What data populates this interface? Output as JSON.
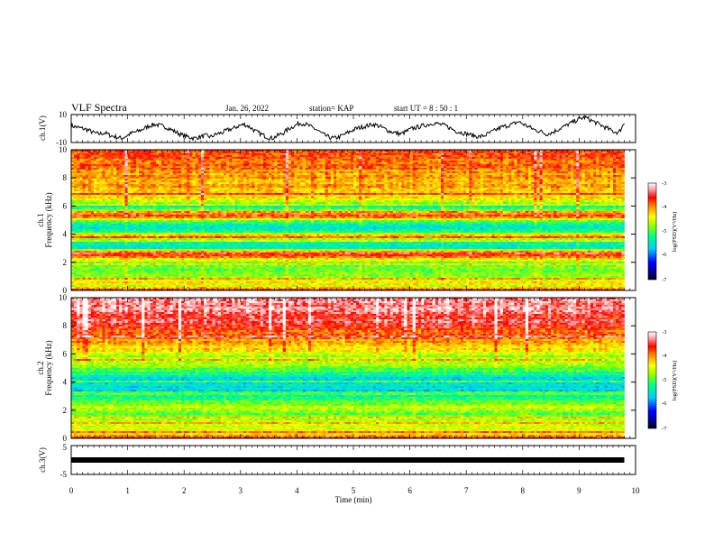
{
  "header": {
    "title": "VLF Spectra",
    "date": "Jan. 26, 2022",
    "station": "station= KAP",
    "start": "start  UT  =   8  : 50 : 1"
  },
  "chart_data": [
    {
      "type": "line",
      "panel": "ch1-waveform",
      "ylabel": "ch.1(V)",
      "yticks": [
        "10",
        "-10"
      ],
      "ylim": [
        -10,
        10
      ],
      "xlim": [
        0,
        10
      ],
      "x_end": 9.8,
      "description_values": [
        2,
        1,
        0,
        -1,
        -3,
        -4,
        -3,
        -5,
        -6,
        -7,
        -5,
        -3,
        -2,
        0,
        2,
        3,
        2,
        1,
        -1,
        -3,
        -5,
        -6,
        -7,
        -6,
        -5,
        -6,
        -4,
        -3,
        -1,
        0,
        2,
        3,
        1,
        -2,
        -4,
        -6,
        -7,
        -5,
        -3,
        0,
        2,
        4,
        3,
        1,
        -1,
        -4,
        -6,
        -7,
        -6,
        -4,
        -2,
        0,
        1,
        2,
        3,
        2,
        0,
        -2,
        -3,
        -4,
        -2,
        0,
        1,
        2,
        3,
        4,
        3,
        2,
        0,
        -2,
        -3,
        -4,
        -5,
        -6,
        -5,
        -3,
        -1,
        1,
        2,
        3,
        5,
        3,
        1,
        -1,
        -2,
        -4,
        -3,
        -1,
        1,
        3,
        5,
        7,
        8,
        6,
        4,
        2,
        0,
        -2,
        -3,
        4
      ]
    },
    {
      "type": "heatmap",
      "panel": "ch1-spectrogram",
      "ylabel": "Frequency (kHz)",
      "channel_label": "ch.1",
      "yticks": [
        "0",
        "2",
        "4",
        "6",
        "8",
        "10"
      ],
      "ylim": [
        0,
        10
      ],
      "xlim": [
        0,
        10
      ],
      "x_end": 9.8,
      "colorbar": {
        "label": "log(PSD)(V²/Hz)",
        "ticks": [
          "-3",
          "-4",
          "-5",
          "-6",
          "-7"
        ],
        "range": [
          -7,
          -3
        ]
      },
      "freq_profile_khz": [
        [
          0,
          -3.4
        ],
        [
          0.3,
          -4.6
        ],
        [
          0.6,
          -4.4
        ],
        [
          1.0,
          -4.8
        ],
        [
          1.5,
          -5.0
        ],
        [
          2.0,
          -4.9
        ],
        [
          2.3,
          -4.3
        ],
        [
          2.6,
          -3.5
        ],
        [
          3.0,
          -5.3
        ],
        [
          3.3,
          -5.5
        ],
        [
          3.6,
          -5.1
        ],
        [
          3.8,
          -3.6
        ],
        [
          4.2,
          -5.4
        ],
        [
          4.6,
          -5.6
        ],
        [
          5.0,
          -4.9
        ],
        [
          5.3,
          -3.5
        ],
        [
          5.6,
          -4.8
        ],
        [
          6.0,
          -5.4
        ],
        [
          6.4,
          -4.6
        ],
        [
          7.0,
          -4.3
        ],
        [
          7.6,
          -4.2
        ],
        [
          8.2,
          -4.1
        ],
        [
          9.0,
          -4.0
        ],
        [
          10.0,
          -3.9
        ]
      ]
    },
    {
      "type": "heatmap",
      "panel": "ch2-spectrogram",
      "ylabel": "Frequency (kHz)",
      "channel_label": "ch.2",
      "yticks": [
        "0",
        "2",
        "4",
        "6",
        "8",
        "10"
      ],
      "ylim": [
        0,
        10
      ],
      "xlim": [
        0,
        10
      ],
      "x_end": 9.8,
      "colorbar": {
        "label": "log(PSD)(V²/Hz)",
        "ticks": [
          "-3",
          "-4",
          "-5",
          "-6",
          "-7"
        ],
        "range": [
          -7,
          -3
        ]
      },
      "freq_profile_khz": [
        [
          0,
          -3.5
        ],
        [
          0.3,
          -4.4
        ],
        [
          0.8,
          -4.6
        ],
        [
          1.2,
          -4.7
        ],
        [
          1.8,
          -4.9
        ],
        [
          2.2,
          -4.5
        ],
        [
          2.6,
          -5.0
        ],
        [
          3.0,
          -5.4
        ],
        [
          3.4,
          -5.7
        ],
        [
          3.8,
          -5.5
        ],
        [
          4.2,
          -5.6
        ],
        [
          4.6,
          -5.2
        ],
        [
          5.0,
          -4.9
        ],
        [
          5.4,
          -4.7
        ],
        [
          5.8,
          -4.8
        ],
        [
          6.4,
          -4.4
        ],
        [
          7.0,
          -4.1
        ],
        [
          7.6,
          -3.9
        ],
        [
          8.2,
          -3.7
        ],
        [
          9.0,
          -3.5
        ],
        [
          10.0,
          -3.4
        ]
      ]
    },
    {
      "type": "line",
      "panel": "ch3-waveform",
      "ylabel": "ch.3(V)",
      "yticks": [
        "5",
        "-5"
      ],
      "ylim": [
        -5,
        5
      ],
      "xlim": [
        0,
        10
      ],
      "x_end": 9.8,
      "level": 0
    }
  ],
  "xaxis": {
    "label": "Time  (min)",
    "ticks": [
      "0",
      "1",
      "2",
      "3",
      "4",
      "5",
      "6",
      "7",
      "8",
      "9",
      "10"
    ]
  },
  "colors": {
    "trace": "#000000",
    "colormap": [
      "#000080",
      "#0000ff",
      "#00aaff",
      "#00ffff",
      "#00ff66",
      "#aaff00",
      "#ffff00",
      "#ffaa00",
      "#ff0000",
      "#ffffff"
    ]
  }
}
